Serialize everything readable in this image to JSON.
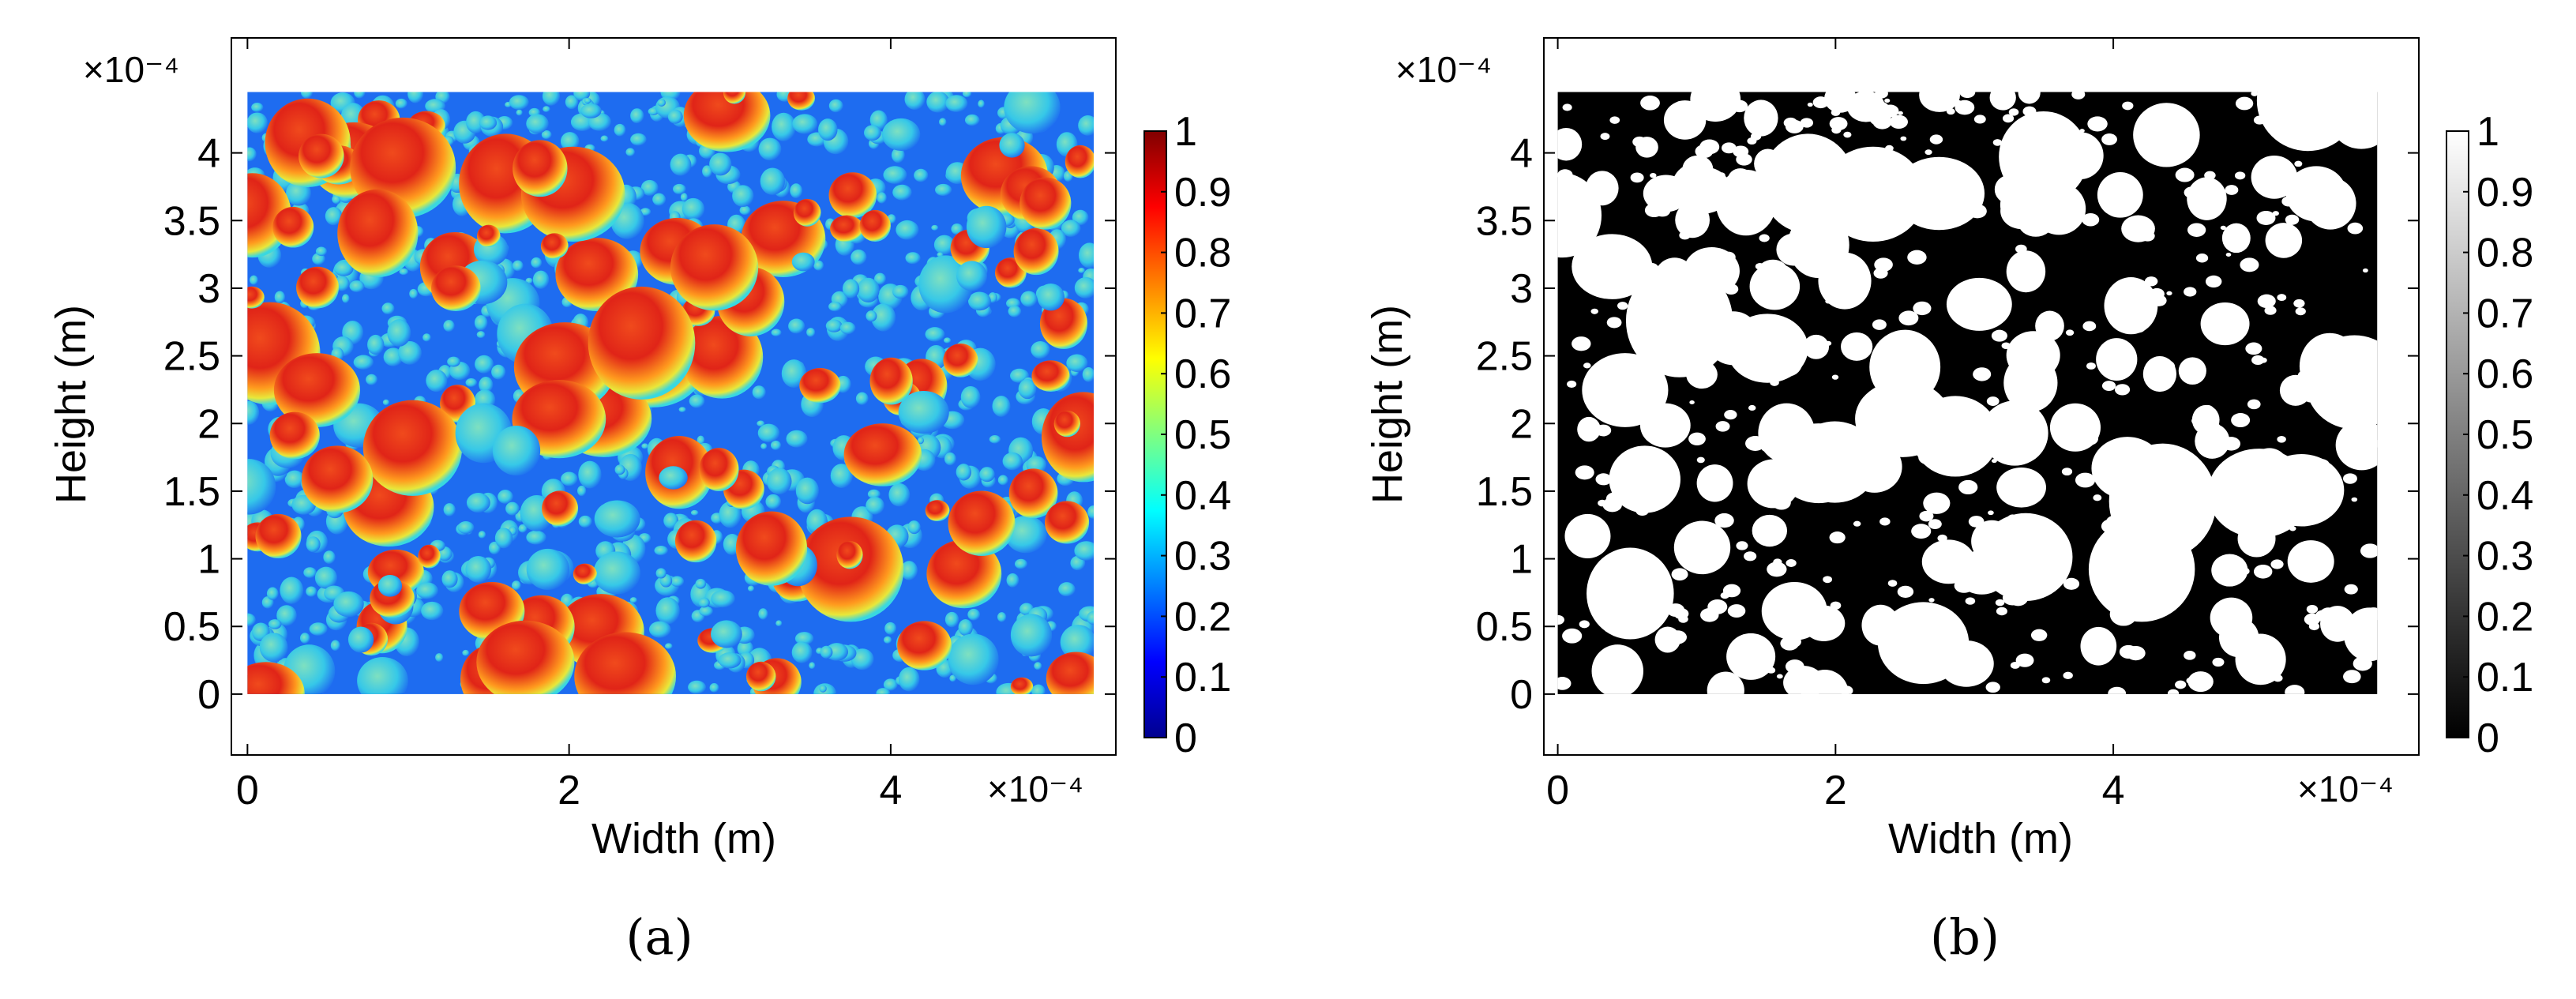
{
  "chart_data": [
    {
      "type": "heatmap",
      "panel_label": "(a)",
      "colormap": "jet",
      "xlabel": "Width (m)",
      "ylabel": "Height (m)",
      "x_exponent": "×10⁻⁴",
      "y_exponent": "×10⁻⁴",
      "x_scale": 0.0001,
      "y_scale": 0.0001,
      "xlim": [
        -0.1,
        5.4
      ],
      "ylim": [
        -0.45,
        4.85
      ],
      "image_extent": {
        "x": [
          0,
          5.9
        ],
        "y": [
          0,
          4.45
        ]
      },
      "xticks": [
        0,
        2,
        4
      ],
      "xtick_labels": [
        "0",
        "2",
        "4"
      ],
      "yticks": [
        0,
        0.5,
        1,
        1.5,
        2,
        2.5,
        3,
        3.5,
        4
      ],
      "ytick_labels": [
        "0",
        "0.5",
        "1",
        "1.5",
        "2",
        "2.5",
        "3",
        "3.5",
        "4"
      ],
      "colorbar": {
        "range": [
          0,
          1
        ],
        "ticks": [
          0,
          0.1,
          0.2,
          0.3,
          0.4,
          0.5,
          0.6,
          0.7,
          0.8,
          0.9,
          1
        ],
        "tick_labels": [
          "0",
          "0.1",
          "0.2",
          "0.3",
          "0.4",
          "0.5",
          "0.6",
          "0.7",
          "0.8",
          "0.9",
          "1"
        ]
      },
      "grid": false
    },
    {
      "type": "heatmap",
      "panel_label": "(b)",
      "colormap": "gray",
      "xlabel": "Width (m)",
      "ylabel": "Height (m)",
      "x_exponent": "×10⁻⁴",
      "y_exponent": "×10⁻⁴",
      "x_scale": 0.0001,
      "y_scale": 0.0001,
      "xlim": [
        -0.1,
        6.2
      ],
      "ylim": [
        -0.45,
        4.85
      ],
      "image_extent": {
        "x": [
          0,
          5.9
        ],
        "y": [
          0,
          4.45
        ]
      },
      "xticks": [
        0,
        2,
        4
      ],
      "xtick_labels": [
        "0",
        "2",
        "4"
      ],
      "yticks": [
        0,
        0.5,
        1,
        1.5,
        2,
        2.5,
        3,
        3.5,
        4
      ],
      "ytick_labels": [
        "0",
        "0.5",
        "1",
        "1.5",
        "2",
        "2.5",
        "3",
        "3.5",
        "4"
      ],
      "colorbar": {
        "range": [
          0,
          1
        ],
        "ticks": [
          0,
          0.1,
          0.2,
          0.3,
          0.4,
          0.5,
          0.6,
          0.7,
          0.8,
          0.9,
          1
        ],
        "tick_labels": [
          "0",
          "0.1",
          "0.2",
          "0.3",
          "0.4",
          "0.5",
          "0.6",
          "0.7",
          "0.8",
          "0.9",
          "1"
        ]
      },
      "grid": false
    }
  ],
  "colors": {
    "jet_background": "#1e6cf0",
    "jet_particle_core": "#e8281a",
    "binary_background": "#000000",
    "binary_particle": "#ffffff"
  }
}
